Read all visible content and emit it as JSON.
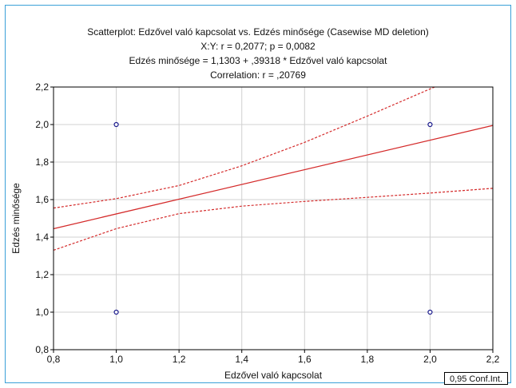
{
  "chart_data": {
    "type": "scatter",
    "title": "Scatterplot: Edzővel való kapcsolat vs. Edzés minősége (Casewise MD deletion)",
    "subtitle_lines": [
      "X:Y:   r = 0,2077; p = 0,0082",
      "Edzés minősége = 1,1303 + ,39318 * Edzővel való kapcsolat",
      "Correlation: r = ,20769"
    ],
    "xlabel": "Edzővel való kapcsolat",
    "ylabel": "Edzés minősége",
    "xlim": [
      0.8,
      2.2
    ],
    "ylim": [
      0.8,
      2.2
    ],
    "x_ticks": [
      "0,8",
      "1,0",
      "1,2",
      "1,4",
      "1,6",
      "1,8",
      "2,0",
      "2,2"
    ],
    "y_ticks": [
      "0,8",
      "1,0",
      "1,2",
      "1,4",
      "1,6",
      "1,8",
      "2,0",
      "2,2"
    ],
    "grid": true,
    "points": [
      {
        "x": 1.0,
        "y": 2.0
      },
      {
        "x": 1.0,
        "y": 1.0
      },
      {
        "x": 2.0,
        "y": 2.0
      },
      {
        "x": 2.0,
        "y": 1.0
      }
    ],
    "regression": {
      "intercept": 1.1303,
      "slope": 0.39318
    },
    "confidence_band": {
      "label": "0,95 Conf.Int.",
      "x": [
        0.8,
        1.0,
        1.2,
        1.4,
        1.6,
        1.8,
        2.0,
        2.2
      ],
      "upper": [
        1.555,
        1.605,
        1.675,
        1.78,
        1.905,
        2.045,
        2.19,
        2.33
      ],
      "lower": [
        1.33,
        1.445,
        1.525,
        1.565,
        1.59,
        1.612,
        1.635,
        1.66
      ]
    },
    "colors": {
      "points": "#1a1a8c",
      "regression": "#d42a2a",
      "grid": "#d0d0d0",
      "frame": "#3aa0d8"
    }
  }
}
